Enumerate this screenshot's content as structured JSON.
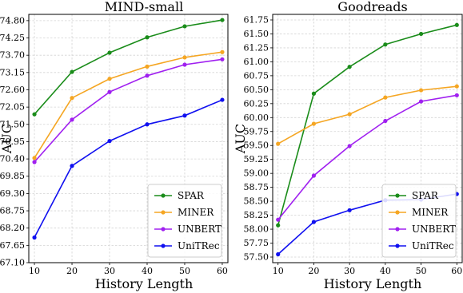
{
  "colors": {
    "SPAR": "#1a8c1a",
    "MINER": "#f5a623",
    "UNBERT": "#a020f0",
    "UniTRec": "#1010f0"
  },
  "chart_data": [
    {
      "type": "line",
      "title": "MIND-small",
      "xlabel": "History Length",
      "ylabel": "AUC",
      "x": [
        10,
        20,
        30,
        40,
        50,
        60
      ],
      "xticks": [
        "10",
        "20",
        "30",
        "40",
        "50",
        "60"
      ],
      "ylim": [
        67.1,
        75.0
      ],
      "yticks": [
        "67.10",
        "67.65",
        "68.20",
        "68.75",
        "69.30",
        "69.85",
        "70.40",
        "70.95",
        "71.50",
        "72.05",
        "72.60",
        "73.15",
        "73.70",
        "74.25",
        "74.80"
      ],
      "grid": true,
      "legend_position": "bottom-right",
      "series": [
        {
          "name": "SPAR",
          "values": [
            71.82,
            73.17,
            73.78,
            74.27,
            74.62,
            74.82
          ]
        },
        {
          "name": "MINER",
          "values": [
            70.43,
            72.34,
            72.95,
            73.34,
            73.63,
            73.8
          ]
        },
        {
          "name": "UNBERT",
          "values": [
            70.3,
            71.65,
            72.53,
            73.05,
            73.4,
            73.57
          ]
        },
        {
          "name": "UniTRec",
          "values": [
            67.9,
            70.18,
            70.97,
            71.5,
            71.78,
            72.28
          ]
        }
      ]
    },
    {
      "type": "line",
      "title": "Goodreads",
      "xlabel": "History Length",
      "ylabel": "AUC",
      "x": [
        10,
        20,
        30,
        40,
        50,
        60
      ],
      "xticks": [
        "10",
        "20",
        "30",
        "40",
        "50",
        "60"
      ],
      "ylim": [
        57.4,
        61.85
      ],
      "yticks": [
        "57.50",
        "57.75",
        "58.00",
        "58.25",
        "58.50",
        "58.75",
        "59.00",
        "59.25",
        "59.50",
        "59.75",
        "60.00",
        "60.25",
        "60.50",
        "60.75",
        "61.00",
        "61.25",
        "61.50",
        "61.75"
      ],
      "grid": true,
      "legend_position": "bottom-right",
      "series": [
        {
          "name": "SPAR",
          "values": [
            58.07,
            60.43,
            60.91,
            61.31,
            61.5,
            61.66
          ]
        },
        {
          "name": "MINER",
          "values": [
            59.53,
            59.89,
            60.06,
            60.36,
            60.49,
            60.56
          ]
        },
        {
          "name": "UNBERT",
          "values": [
            58.17,
            58.96,
            59.49,
            59.94,
            60.29,
            60.4
          ]
        },
        {
          "name": "UniTRec",
          "values": [
            57.55,
            58.13,
            58.34,
            58.52,
            58.53,
            58.63
          ]
        }
      ]
    }
  ]
}
